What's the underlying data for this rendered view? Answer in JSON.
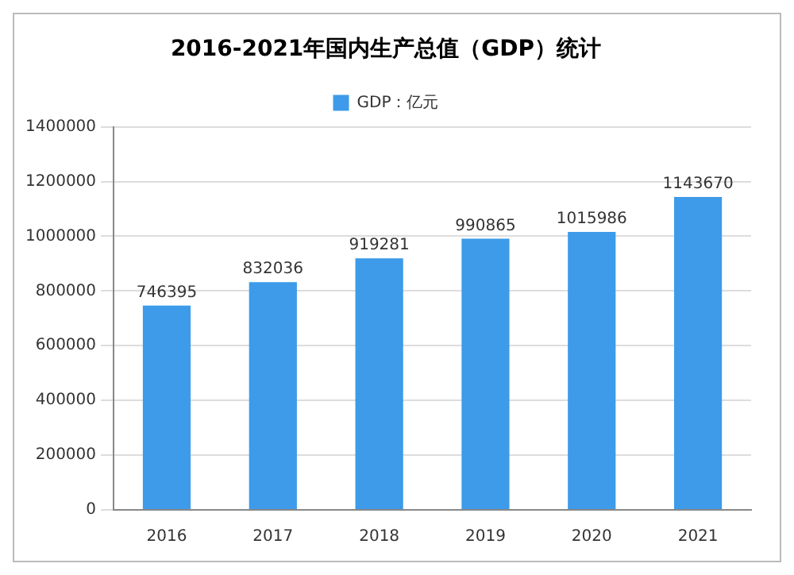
{
  "chart_data": {
    "type": "bar",
    "title": "2016-2021年国内生产总值（GDP）统计",
    "categories": [
      "2016",
      "2017",
      "2018",
      "2019",
      "2020",
      "2021"
    ],
    "series": [
      {
        "name": "GDP：亿元",
        "color": "#3d9be9",
        "values": [
          746395,
          832036,
          919281,
          990865,
          1015986,
          1143670
        ]
      }
    ],
    "ylim": [
      0,
      1400000
    ],
    "yticks": [
      0,
      200000,
      400000,
      600000,
      800000,
      1000000,
      1200000,
      1400000
    ],
    "grid": "y",
    "legend": "top",
    "data_labels": true
  }
}
